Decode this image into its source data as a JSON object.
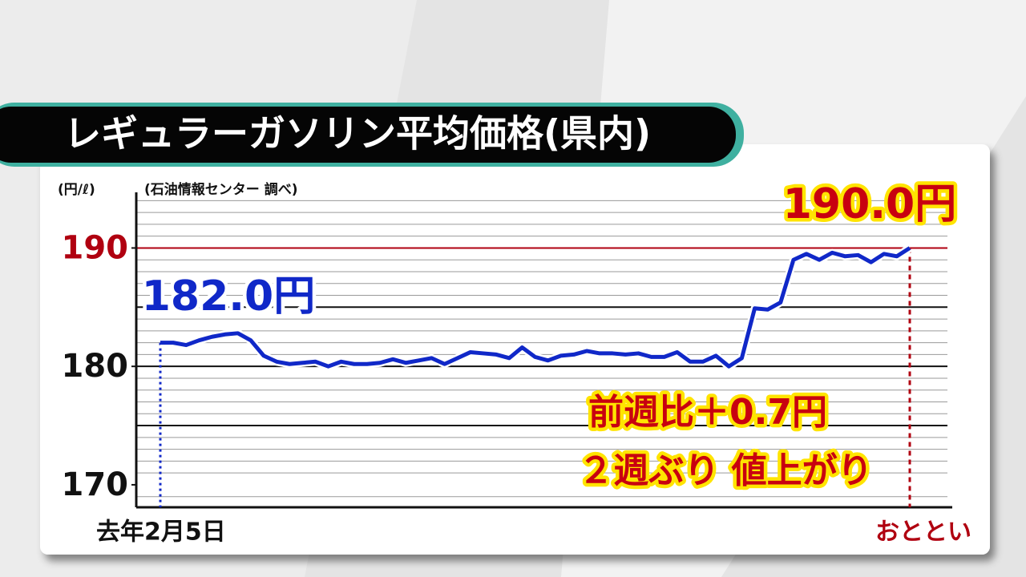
{
  "chart_data": {
    "type": "line",
    "title": "レギュラーガソリン平均価格(県内)",
    "unit_label": "(円/ℓ)",
    "source": "(石油情報センター 調べ)",
    "annotations": [
      "前週比＋0.7円",
      "２週ぶり 値上がり"
    ],
    "categories": [
      "去年2月5日",
      null,
      null,
      null,
      null,
      null,
      null,
      null,
      null,
      null,
      null,
      null,
      null,
      null,
      null,
      null,
      null,
      null,
      null,
      null,
      null,
      null,
      null,
      null,
      null,
      null,
      null,
      null,
      null,
      null,
      null,
      null,
      null,
      null,
      null,
      null,
      null,
      null,
      null,
      null,
      null,
      null,
      null,
      null,
      null,
      null,
      null,
      null,
      null,
      null,
      null,
      null,
      null,
      null,
      null,
      null,
      null,
      null,
      "おととい"
    ],
    "series": [
      {
        "name": "レギュラーガソリン平均価格",
        "color": "#1028c8",
        "values": [
          182.0,
          182.0,
          181.8,
          182.2,
          182.5,
          182.7,
          182.8,
          182.2,
          180.9,
          180.4,
          180.2,
          180.3,
          180.4,
          180.0,
          180.4,
          180.2,
          180.2,
          180.3,
          180.6,
          180.3,
          180.5,
          180.7,
          180.2,
          180.7,
          181.2,
          181.1,
          181.0,
          180.7,
          181.6,
          180.8,
          180.5,
          180.9,
          181.0,
          181.3,
          181.1,
          181.1,
          181.0,
          181.1,
          180.8,
          180.8,
          181.2,
          180.4,
          180.4,
          180.9,
          180.0,
          180.7,
          184.9,
          184.8,
          185.4,
          189.0,
          189.5,
          189.0,
          189.6,
          189.3,
          189.4,
          188.8,
          189.5,
          189.3,
          190.0
        ],
        "value_labels": [
          "182.0円",
          null,
          null,
          null,
          null,
          null,
          null,
          null,
          null,
          null,
          null,
          null,
          null,
          null,
          null,
          null,
          null,
          null,
          null,
          null,
          null,
          null,
          null,
          null,
          null,
          null,
          null,
          null,
          null,
          null,
          null,
          null,
          null,
          null,
          null,
          null,
          null,
          null,
          null,
          null,
          null,
          null,
          null,
          null,
          null,
          null,
          null,
          null,
          null,
          null,
          null,
          null,
          null,
          null,
          null,
          null,
          null,
          null,
          "190.0円"
        ]
      }
    ],
    "ylim": [
      168.1,
      194.7
    ],
    "yticks": [
      170,
      180,
      190
    ],
    "major_gridlines": [
      175,
      180,
      185
    ],
    "highlight_line": 190,
    "highlight_color": "#b00010",
    "minor_gridlines": [
      169,
      171,
      172,
      173,
      174,
      176,
      177,
      178,
      179,
      181,
      182,
      183,
      184,
      186,
      187,
      188,
      189,
      191,
      192,
      193,
      194
    ]
  }
}
